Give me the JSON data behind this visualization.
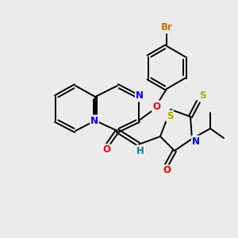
{
  "background_color": "#ebebeb",
  "bond_color": "#000000",
  "atom_colors": {
    "N": "#0000ee",
    "O": "#ee0000",
    "S": "#aaaa00",
    "Br": "#bb7700",
    "H": "#008888",
    "C": "#000000"
  },
  "figsize": [
    3.0,
    3.0
  ],
  "dpi": 100
}
